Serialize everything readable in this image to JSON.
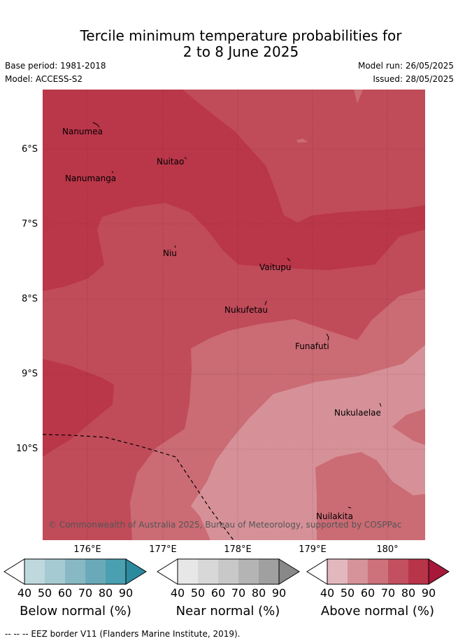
{
  "title_line1": "Tercile minimum temperature probabilities for",
  "title_line2": "2 to 8 June 2025",
  "base_period": "Base period: 1981-2018",
  "model": "Model: ACCESS-S2",
  "model_run": "Model run: 26/05/2025",
  "issued": "Issued: 28/05/2025",
  "lat_labels": [
    "6°S",
    "7°S",
    "8°S",
    "9°S",
    "10°S"
  ],
  "lon_labels": [
    "176°E",
    "177°E",
    "178°E",
    "179°E",
    "180°"
  ],
  "islands": [
    "Nanumea",
    "Nuitao",
    "Nanumanga",
    "Niu",
    "Vaitupu",
    "Nukufetau",
    "Funafuti",
    "Nukulaelae",
    "Nuilakita"
  ],
  "copyright": "© Commonwealth of Australia 2025, Bureau of Meteorology, supported by COSPPac",
  "colorbars": [
    {
      "title": "Below normal (%)",
      "ticks": [
        "40",
        "50",
        "60",
        "70",
        "80",
        "90"
      ],
      "colors": [
        "#bfd8de",
        "#a6cad1",
        "#88b8c4",
        "#6aaab8",
        "#4a9fb0",
        "#2c8a9e"
      ]
    },
    {
      "title": "Near normal (%)",
      "ticks": [
        "40",
        "50",
        "60",
        "70",
        "80",
        "90"
      ],
      "colors": [
        "#e7e7e7",
        "#d8d8d8",
        "#c8c8c8",
        "#b4b4b4",
        "#a0a0a0",
        "#888888"
      ]
    },
    {
      "title": "Above normal (%)",
      "ticks": [
        "40",
        "50",
        "60",
        "70",
        "80",
        "90"
      ],
      "colors": [
        "#e2b8be",
        "#d69399",
        "#cd717a",
        "#c2505e",
        "#b83449",
        "#a8183a"
      ]
    }
  ],
  "footer": "--  --  -- EEZ border V11 (Flanders Marine Institute, 2019)."
}
